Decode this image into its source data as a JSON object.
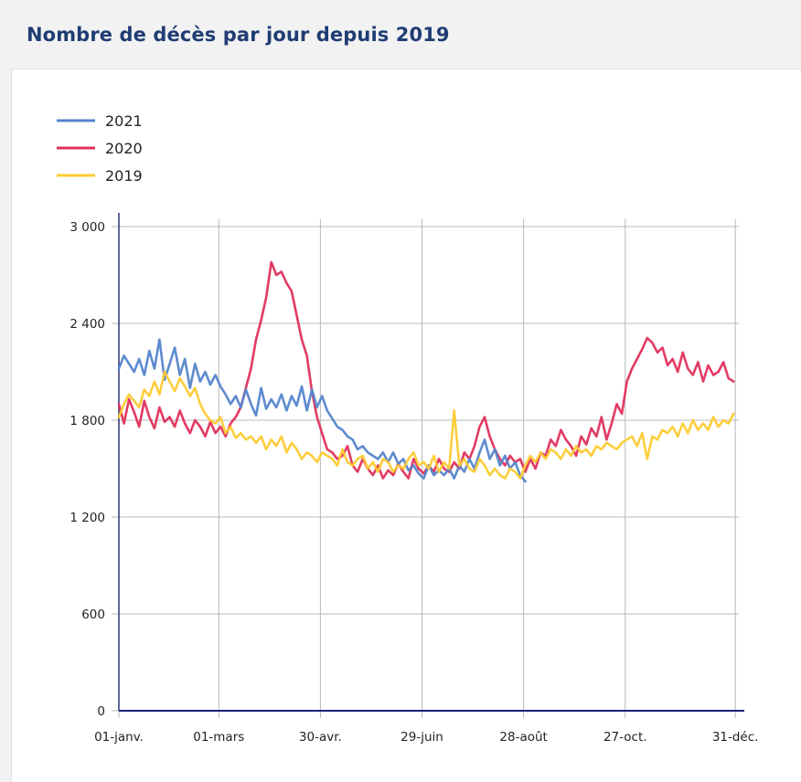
{
  "page": {
    "title": "Nombre de décès par jour depuis 2019"
  },
  "chart_data": {
    "type": "line",
    "title": "Nombre de décès par jour depuis 2019",
    "xlabel": "",
    "ylabel": "",
    "x_unit": "day of year",
    "xlim": [
      0,
      365
    ],
    "ylim": [
      0,
      3000
    ],
    "grid": true,
    "legend_position": "top-left",
    "y_ticks": [
      {
        "value": 0,
        "label": "0"
      },
      {
        "value": 600,
        "label": "600"
      },
      {
        "value": 1200,
        "label": "1 200"
      },
      {
        "value": 1800,
        "label": "1 800"
      },
      {
        "value": 2400,
        "label": "2 400"
      },
      {
        "value": 3000,
        "label": "3 000"
      }
    ],
    "x_ticks": [
      {
        "value": 0,
        "label": "01-janv."
      },
      {
        "value": 59,
        "label": "01-mars"
      },
      {
        "value": 119,
        "label": "30-avr."
      },
      {
        "value": 179,
        "label": "29-juin"
      },
      {
        "value": 239,
        "label": "28-août"
      },
      {
        "value": 299,
        "label": "27-oct."
      },
      {
        "value": 364,
        "label": "31-déc."
      }
    ],
    "series": [
      {
        "name": "2021",
        "color": "#5585cc",
        "x": [
          0,
          3,
          6,
          9,
          12,
          15,
          18,
          21,
          24,
          27,
          30,
          33,
          36,
          39,
          42,
          45,
          48,
          51,
          54,
          57,
          60,
          63,
          66,
          69,
          72,
          75,
          78,
          81,
          84,
          87,
          90,
          93,
          96,
          99,
          102,
          105,
          108,
          111,
          114,
          117,
          120,
          123,
          126,
          129,
          132,
          135,
          138,
          141,
          144,
          147,
          150,
          153,
          156,
          159,
          162,
          165,
          168,
          171,
          174,
          177,
          180,
          183,
          186,
          189,
          192,
          195,
          198,
          201,
          204,
          207,
          210,
          213,
          216,
          219,
          222,
          225,
          228,
          231,
          234,
          237,
          240
        ],
        "values": [
          2120,
          2200,
          2150,
          2100,
          2180,
          2080,
          2230,
          2120,
          2300,
          2050,
          2150,
          2250,
          2080,
          2180,
          2000,
          2150,
          2040,
          2100,
          2020,
          2080,
          2010,
          1960,
          1900,
          1950,
          1880,
          1990,
          1900,
          1830,
          2000,
          1870,
          1930,
          1880,
          1960,
          1860,
          1950,
          1890,
          2010,
          1860,
          1990,
          1880,
          1950,
          1860,
          1810,
          1760,
          1740,
          1700,
          1680,
          1620,
          1640,
          1600,
          1580,
          1560,
          1600,
          1540,
          1600,
          1530,
          1560,
          1490,
          1520,
          1470,
          1440,
          1520,
          1460,
          1490,
          1460,
          1500,
          1440,
          1520,
          1480,
          1560,
          1500,
          1600,
          1680,
          1560,
          1620,
          1520,
          1580,
          1500,
          1540,
          1460,
          1420
        ]
      },
      {
        "name": "2020",
        "color": "#e0305c",
        "x": [
          0,
          3,
          6,
          9,
          12,
          15,
          18,
          21,
          24,
          27,
          30,
          33,
          36,
          39,
          42,
          45,
          48,
          51,
          54,
          57,
          60,
          63,
          66,
          69,
          72,
          75,
          78,
          81,
          84,
          87,
          90,
          93,
          96,
          99,
          102,
          105,
          108,
          111,
          114,
          117,
          120,
          123,
          126,
          129,
          132,
          135,
          138,
          141,
          144,
          147,
          150,
          153,
          156,
          159,
          162,
          165,
          168,
          171,
          174,
          177,
          180,
          183,
          186,
          189,
          192,
          195,
          198,
          201,
          204,
          207,
          210,
          213,
          216,
          219,
          222,
          225,
          228,
          231,
          234,
          237,
          240,
          243,
          246,
          249,
          252,
          255,
          258,
          261,
          264,
          267,
          270,
          273,
          276,
          279,
          282,
          285,
          288,
          291,
          294,
          297,
          300,
          303,
          306,
          309,
          312,
          315,
          318,
          321,
          324,
          327,
          330,
          333,
          336,
          339,
          342,
          345,
          348,
          351,
          354,
          357,
          360,
          363
        ],
        "values": [
          1900,
          1780,
          1930,
          1850,
          1760,
          1920,
          1820,
          1750,
          1880,
          1790,
          1820,
          1760,
          1860,
          1780,
          1720,
          1800,
          1760,
          1700,
          1790,
          1720,
          1760,
          1700,
          1780,
          1820,
          1880,
          2000,
          2120,
          2300,
          2420,
          2560,
          2780,
          2700,
          2720,
          2650,
          2600,
          2450,
          2300,
          2200,
          1980,
          1820,
          1720,
          1620,
          1600,
          1560,
          1580,
          1640,
          1520,
          1480,
          1560,
          1500,
          1460,
          1520,
          1440,
          1490,
          1460,
          1530,
          1480,
          1440,
          1560,
          1500,
          1470,
          1520,
          1480,
          1560,
          1500,
          1480,
          1540,
          1500,
          1600,
          1560,
          1640,
          1760,
          1820,
          1700,
          1620,
          1560,
          1520,
          1580,
          1540,
          1560,
          1480,
          1560,
          1500,
          1600,
          1580,
          1680,
          1640,
          1740,
          1680,
          1640,
          1580,
          1700,
          1650,
          1750,
          1700,
          1820,
          1680,
          1780,
          1900,
          1840,
          2040,
          2120,
          2180,
          2240,
          2310,
          2280,
          2220,
          2250,
          2140,
          2180,
          2100,
          2220,
          2120,
          2080,
          2160,
          2040,
          2140,
          2080,
          2100,
          2160,
          2060,
          2040
        ]
      },
      {
        "name": "2019",
        "color": "#fdcb32",
        "x": [
          0,
          3,
          6,
          9,
          12,
          15,
          18,
          21,
          24,
          27,
          30,
          33,
          36,
          39,
          42,
          45,
          48,
          51,
          54,
          57,
          60,
          63,
          66,
          69,
          72,
          75,
          78,
          81,
          84,
          87,
          90,
          93,
          96,
          99,
          102,
          105,
          108,
          111,
          114,
          117,
          120,
          123,
          126,
          129,
          132,
          135,
          138,
          141,
          144,
          147,
          150,
          153,
          156,
          159,
          162,
          165,
          168,
          171,
          174,
          177,
          180,
          183,
          186,
          189,
          192,
          195,
          198,
          201,
          204,
          207,
          210,
          213,
          216,
          219,
          222,
          225,
          228,
          231,
          234,
          237,
          240,
          243,
          246,
          249,
          252,
          255,
          258,
          261,
          264,
          267,
          270,
          273,
          276,
          279,
          282,
          285,
          288,
          291,
          294,
          297,
          300,
          303,
          306,
          309,
          312,
          315,
          318,
          321,
          324,
          327,
          330,
          333,
          336,
          339,
          342,
          345,
          348,
          351,
          354,
          357,
          360,
          363
        ],
        "values": [
          1820,
          1900,
          1960,
          1920,
          1880,
          1990,
          1950,
          2040,
          1960,
          2100,
          2040,
          1980,
          2060,
          2010,
          1950,
          2000,
          1900,
          1840,
          1800,
          1780,
          1820,
          1720,
          1760,
          1690,
          1720,
          1680,
          1700,
          1660,
          1700,
          1620,
          1680,
          1640,
          1700,
          1600,
          1660,
          1620,
          1560,
          1600,
          1580,
          1540,
          1600,
          1580,
          1560,
          1520,
          1620,
          1540,
          1520,
          1560,
          1580,
          1500,
          1540,
          1480,
          1560,
          1540,
          1480,
          1520,
          1500,
          1560,
          1600,
          1520,
          1540,
          1500,
          1580,
          1480,
          1540,
          1500,
          1860,
          1520,
          1560,
          1500,
          1480,
          1560,
          1520,
          1460,
          1500,
          1460,
          1440,
          1500,
          1480,
          1440,
          1520,
          1580,
          1540,
          1600,
          1560,
          1620,
          1600,
          1560,
          1620,
          1580,
          1640,
          1600,
          1620,
          1580,
          1640,
          1620,
          1660,
          1640,
          1620,
          1660,
          1680,
          1700,
          1640,
          1720,
          1560,
          1700,
          1680,
          1740,
          1720,
          1760,
          1700,
          1780,
          1720,
          1800,
          1740,
          1780,
          1740,
          1820,
          1760,
          1800,
          1780,
          1840
        ]
      }
    ]
  }
}
